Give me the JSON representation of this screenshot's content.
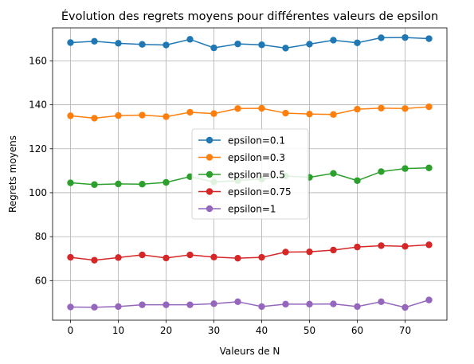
{
  "chart_data": {
    "type": "line",
    "title": "Évolution des regrets moyens pour différentes valeurs de epsilon",
    "xlabel": "Valeurs de N",
    "ylabel": "Regrets moyens",
    "xlim": [
      -3.75,
      78.75
    ],
    "ylim": [
      42,
      175
    ],
    "x_ticks": [
      0,
      10,
      20,
      30,
      40,
      50,
      60,
      70
    ],
    "y_ticks": [
      60,
      80,
      100,
      120,
      140,
      160
    ],
    "grid": true,
    "legend_position": "center",
    "x": [
      0,
      5,
      10,
      15,
      20,
      25,
      30,
      35,
      40,
      45,
      50,
      55,
      60,
      65,
      70,
      75
    ],
    "series": [
      {
        "name": "epsilon=0.1",
        "color": "#1f77b4",
        "values": [
          168.3,
          168.9,
          168.0,
          167.5,
          167.2,
          169.8,
          165.9,
          167.7,
          167.3,
          165.8,
          167.6,
          169.4,
          168.2,
          170.5,
          170.6,
          170.1
        ]
      },
      {
        "name": "epsilon=0.3",
        "color": "#ff7f0e",
        "values": [
          135.0,
          133.9,
          135.1,
          135.3,
          134.6,
          136.6,
          136.0,
          138.3,
          138.4,
          136.2,
          135.8,
          135.6,
          138.0,
          138.5,
          138.3,
          139.1
        ]
      },
      {
        "name": "epsilon=0.5",
        "color": "#2ca02c",
        "values": [
          104.5,
          103.7,
          104.0,
          103.9,
          104.7,
          107.3,
          104.9,
          105.5,
          106.2,
          107.6,
          107.0,
          108.8,
          105.5,
          109.6,
          111.0,
          111.3
        ]
      },
      {
        "name": "epsilon=0.75",
        "color": "#d62728",
        "values": [
          70.6,
          69.3,
          70.5,
          71.7,
          70.3,
          71.7,
          70.7,
          70.2,
          70.6,
          73.0,
          73.1,
          73.9,
          75.3,
          75.9,
          75.6,
          76.3
        ]
      },
      {
        "name": "epsilon=1",
        "color": "#9467bd",
        "values": [
          48.0,
          47.9,
          48.2,
          49.0,
          49.0,
          49.0,
          49.5,
          50.4,
          48.2,
          49.3,
          49.3,
          49.4,
          48.2,
          50.4,
          47.8,
          51.2
        ]
      }
    ]
  }
}
